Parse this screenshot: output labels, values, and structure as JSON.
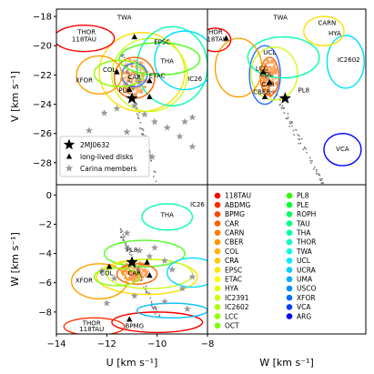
{
  "chart_data": [
    {
      "type": "scatter",
      "panel": "UV",
      "xlabel": "",
      "ylabel": "V [km s⁻¹]",
      "xlim": [
        -14,
        -8
      ],
      "ylim": [
        -29.5,
        -17.5
      ],
      "yticks": [
        -18,
        -20,
        -22,
        -24,
        -26,
        -28
      ],
      "target": {
        "name": "2MJ0632",
        "x": -11.0,
        "y": -23.6
      },
      "disks": [
        [
          -11.6,
          -21.8
        ],
        [
          -10.9,
          -19.4
        ],
        [
          -10.3,
          -22.4
        ],
        [
          -10.3,
          -23.5
        ],
        [
          -11.1,
          -23.0
        ]
      ],
      "carina_members": [
        [
          -12.1,
          -24.6
        ],
        [
          -11.6,
          -24.3
        ],
        [
          -10.7,
          -22.5
        ],
        [
          -10.5,
          -24.7
        ],
        [
          -10.1,
          -25.2
        ],
        [
          -9.6,
          -25.6
        ],
        [
          -8.9,
          -25.2
        ],
        [
          -9.1,
          -26.2
        ],
        [
          -8.6,
          -26.9
        ],
        [
          -11.2,
          -25.9
        ],
        [
          -12.7,
          -25.8
        ],
        [
          -10.2,
          -27.6
        ],
        [
          -8.6,
          -24.9
        ],
        [
          -10.9,
          -24.1
        ]
      ],
      "group_labels": [
        {
          "name": "TWA",
          "x": -11.3,
          "y": -18.2
        },
        {
          "name": "THOR",
          "x": -12.8,
          "y": -19.2
        },
        {
          "name": "118TAU",
          "x": -12.9,
          "y": -19.7
        },
        {
          "name": "EPSC",
          "x": -9.8,
          "y": -19.9
        },
        {
          "name": "COL",
          "x": -11.9,
          "y": -21.8
        },
        {
          "name": "XFOR",
          "x": -12.9,
          "y": -22.5
        },
        {
          "name": "CAR",
          "x": -10.9,
          "y": -22.3
        },
        {
          "name": "THA",
          "x": -9.6,
          "y": -21.2
        },
        {
          "name": "ETAC",
          "x": -10.0,
          "y": -22.2
        },
        {
          "name": "IC26",
          "x": -8.5,
          "y": -22.4
        },
        {
          "name": "PL8",
          "x": -11.3,
          "y": -23.2
        }
      ],
      "ellipses": [
        {
          "color": "#ffe000",
          "cx": -10.6,
          "cy": -21.8,
          "rx": 1.7,
          "ry": 2.7
        },
        {
          "color": "#c8ff1e",
          "cx": -10.3,
          "cy": -22.0,
          "rx": 1.5,
          "ry": 2.5
        },
        {
          "color": "#00ffb0",
          "cx": -9.4,
          "cy": -21.4,
          "rx": 1.4,
          "ry": 2.7
        },
        {
          "color": "#ff6600",
          "cx": -10.9,
          "cy": -22.2,
          "rx": 0.8,
          "ry": 1.4
        },
        {
          "color": "#3070ff",
          "cx": -10.9,
          "cy": -22.0,
          "rx": 0.5,
          "ry": 0.8
        },
        {
          "color": "#50ff20",
          "cx": -9.9,
          "cy": -20.9,
          "rx": 1.6,
          "ry": 1.1
        },
        {
          "color": "#88ff00",
          "cx": -11.5,
          "cy": -21.9,
          "rx": 1.0,
          "ry": 0.9
        },
        {
          "color": "#ffa000",
          "cx": -12.3,
          "cy": -22.0,
          "rx": 0.9,
          "ry": 1.3
        },
        {
          "color": "#00e0ff",
          "cx": -8.9,
          "cy": -21.0,
          "rx": 1.2,
          "ry": 2.0
        },
        {
          "color": "#ff0000",
          "cx": -12.9,
          "cy": -19.5,
          "rx": 1.2,
          "ry": 0.9
        }
      ]
    },
    {
      "type": "scatter",
      "panel": "WV",
      "xlabel": "W [km s⁻¹]",
      "xlim": [
        -9.5,
        0.7
      ],
      "ylim": [
        -29.5,
        -17.5
      ],
      "xticks": [
        -8,
        -6,
        -4,
        -2,
        0
      ],
      "target": {
        "name": "2MJ0632",
        "x": -4.5,
        "y": -23.6
      },
      "disks": [
        [
          -8.3,
          -19.5
        ],
        [
          -5.9,
          -21.8
        ],
        [
          -5.5,
          -22.5
        ],
        [
          -5.8,
          -23.5
        ]
      ],
      "group_labels": [
        {
          "name": "TWA",
          "x": -4.8,
          "y": -18.2
        },
        {
          "name": "CARN",
          "x": -1.8,
          "y": -18.6
        },
        {
          "name": "HYA",
          "x": -1.3,
          "y": -19.3
        },
        {
          "name": "THOR",
          "x": -9.1,
          "y": -19.2
        },
        {
          "name": "118TAU",
          "x": -9.0,
          "y": -19.7
        },
        {
          "name": "UCL",
          "x": -5.5,
          "y": -20.6
        },
        {
          "name": "IC2602",
          "x": -0.4,
          "y": -21.1
        },
        {
          "name": "LCC",
          "x": -6.0,
          "y": -21.7
        },
        {
          "name": "COL",
          "x": -5.7,
          "y": -22.1
        },
        {
          "name": "CAR",
          "x": -5.6,
          "y": -22.8
        },
        {
          "name": "CBER",
          "x": -6.0,
          "y": -23.3
        },
        {
          "name": "PL8",
          "x": -3.3,
          "y": -23.2
        },
        {
          "name": "VCA",
          "x": -0.8,
          "y": -27.2
        }
      ],
      "ellipses": [
        {
          "color": "#3070ff",
          "cx": -5.8,
          "cy": -22.0,
          "rx": 1.0,
          "ry": 2.0
        },
        {
          "color": "#ff6600",
          "cx": -5.5,
          "cy": -22.1,
          "rx": 0.6,
          "ry": 1.3
        },
        {
          "color": "#c8ff1e",
          "cx": -5.2,
          "cy": -21.9,
          "rx": 1.5,
          "ry": 1.8
        },
        {
          "color": "#00ffb0",
          "cx": -4.6,
          "cy": -20.8,
          "rx": 2.3,
          "ry": 1.4
        },
        {
          "color": "#00e0ff",
          "cx": -0.6,
          "cy": -21.1,
          "rx": 1.2,
          "ry": 1.8
        },
        {
          "color": "#0000ff",
          "cx": -0.8,
          "cy": -27.1,
          "rx": 1.2,
          "ry": 1.1
        },
        {
          "color": "#ffe000",
          "cx": -2.0,
          "cy": -19.0,
          "rx": 1.3,
          "ry": 1.0
        },
        {
          "color": "#ffa000",
          "cx": -7.5,
          "cy": -21.5,
          "rx": 1.5,
          "ry": 2.0
        },
        {
          "color": "#ff0000",
          "cx": -9.0,
          "cy": -19.6,
          "rx": 1.0,
          "ry": 0.8
        }
      ]
    },
    {
      "type": "scatter",
      "panel": "UW",
      "xlabel": "U [km s⁻¹]",
      "ylabel": "W [km s⁻¹]",
      "xlim": [
        -14,
        -8
      ],
      "ylim": [
        -9.5,
        0.7
      ],
      "xticks": [
        -14,
        -12,
        -10,
        -8
      ],
      "yticks": [
        0,
        -2,
        -4,
        -6,
        -8
      ],
      "target": {
        "name": "2MJ0632",
        "x": -11.0,
        "y": -4.6
      },
      "disks": [
        [
          -11.1,
          -8.5
        ],
        [
          -10.3,
          -5.5
        ],
        [
          -11.9,
          -4.9
        ],
        [
          -10.4,
          -4.6
        ]
      ],
      "carina_members": [
        [
          -12.2,
          -5.2
        ],
        [
          -11.7,
          -5.7
        ],
        [
          -10.7,
          -3.8
        ],
        [
          -10.3,
          -4.2
        ],
        [
          -9.7,
          -4.5
        ],
        [
          -9.4,
          -5.1
        ],
        [
          -9.0,
          -6.4
        ],
        [
          -8.6,
          -5.6
        ],
        [
          -9.7,
          -7.3
        ],
        [
          -10.9,
          -6.9
        ],
        [
          -12.0,
          -7.4
        ],
        [
          -11.2,
          -2.6
        ],
        [
          -8.8,
          -7.8
        ],
        [
          -10.1,
          -3.6
        ]
      ],
      "group_labels": [
        {
          "name": "THA",
          "x": -9.6,
          "y": -1.5
        },
        {
          "name": "IC26",
          "x": -8.4,
          "y": -0.8
        },
        {
          "name": "PL8",
          "x": -11.0,
          "y": -3.9
        },
        {
          "name": "COL",
          "x": -12.0,
          "y": -5.5
        },
        {
          "name": "CAR",
          "x": -10.9,
          "y": -5.5
        },
        {
          "name": "XFOR",
          "x": -12.9,
          "y": -6.0
        },
        {
          "name": "BPMG",
          "x": -10.9,
          "y": -9.1
        },
        {
          "name": "THOR",
          "x": -12.6,
          "y": -8.9
        },
        {
          "name": "118TAU",
          "x": -12.6,
          "y": -9.3
        }
      ],
      "ellipses": [
        {
          "color": "#00ffb0",
          "cx": -9.6,
          "cy": -1.5,
          "rx": 1.0,
          "ry": 0.9
        },
        {
          "color": "#50ff20",
          "cx": -10.5,
          "cy": -4.0,
          "rx": 1.6,
          "ry": 0.9
        },
        {
          "color": "#ffe000",
          "cx": -10.4,
          "cy": -5.6,
          "rx": 2.0,
          "ry": 1.2
        },
        {
          "color": "#c8ff1e",
          "cx": -10.3,
          "cy": -5.4,
          "rx": 1.7,
          "ry": 1.0
        },
        {
          "color": "#ff6600",
          "cx": -10.8,
          "cy": -5.4,
          "rx": 0.8,
          "ry": 0.7
        },
        {
          "color": "#ffa000",
          "cx": -12.3,
          "cy": -5.9,
          "rx": 1.1,
          "ry": 1.2
        },
        {
          "color": "#88ff00",
          "cx": -11.6,
          "cy": -5.6,
          "rx": 0.9,
          "ry": 0.6
        },
        {
          "color": "#00e0ff",
          "cx": -8.6,
          "cy": -5.3,
          "rx": 1.0,
          "ry": 1.0
        },
        {
          "color": "#ff0000",
          "cx": -10.0,
          "cy": -8.7,
          "rx": 1.8,
          "ry": 0.7
        },
        {
          "color": "#ff3000",
          "cx": -12.5,
          "cy": -9.0,
          "rx": 1.2,
          "ry": 0.6
        },
        {
          "color": "#00c0ff",
          "cx": -9.4,
          "cy": -7.9,
          "rx": 1.4,
          "ry": 0.5
        }
      ]
    }
  ],
  "legend_main": {
    "items": [
      {
        "label": "2MJ0632",
        "marker": "star",
        "color": "#000000"
      },
      {
        "label": "long-lived disks",
        "marker": "triangle",
        "color": "#000000"
      },
      {
        "label": "Carina members",
        "marker": "star",
        "color": "#999999"
      }
    ]
  },
  "legend_groups": {
    "col1": [
      {
        "label": "118TAU",
        "color": "#ff0000"
      },
      {
        "label": "ABDMG",
        "color": "#ff2a00"
      },
      {
        "label": "BPMG",
        "color": "#ff4500"
      },
      {
        "label": "CAR",
        "color": "#ff6000"
      },
      {
        "label": "CARN",
        "color": "#ff7a00"
      },
      {
        "label": "CBER",
        "color": "#ff9500"
      },
      {
        "label": "COL",
        "color": "#ffb000"
      },
      {
        "label": "CRA",
        "color": "#ffca00"
      },
      {
        "label": "EPSC",
        "color": "#ffe500"
      },
      {
        "label": "ETAC",
        "color": "#ffff00"
      },
      {
        "label": "HYA",
        "color": "#e5ff00"
      },
      {
        "label": "IC2391",
        "color": "#caff00"
      },
      {
        "label": "IC2602",
        "color": "#b0ff00"
      },
      {
        "label": "LCC",
        "color": "#95ff00"
      },
      {
        "label": "OCT",
        "color": "#7aff00"
      }
    ],
    "col2": [
      {
        "label": "PL8",
        "color": "#30ff00"
      },
      {
        "label": "PLE",
        "color": "#00ff30"
      },
      {
        "label": "ROPH",
        "color": "#00ff60"
      },
      {
        "label": "TAU",
        "color": "#00ff80"
      },
      {
        "label": "THA",
        "color": "#00ffa0"
      },
      {
        "label": "THOR",
        "color": "#00ffc0"
      },
      {
        "label": "TWA",
        "color": "#00ffe0"
      },
      {
        "label": "UCL",
        "color": "#00f0ff"
      },
      {
        "label": "UCRA",
        "color": "#00d0ff"
      },
      {
        "label": "UMA",
        "color": "#00b0ff"
      },
      {
        "label": "USCO",
        "color": "#0090ff"
      },
      {
        "label": "XFOR",
        "color": "#0070ff"
      },
      {
        "label": "VCA",
        "color": "#0040ff"
      },
      {
        "label": "ARG",
        "color": "#0000ff"
      }
    ]
  },
  "colors": {
    "target_star": "#000000",
    "member_star": "#999999",
    "carina_core": "#ff9a4a",
    "stream": "#777777"
  }
}
